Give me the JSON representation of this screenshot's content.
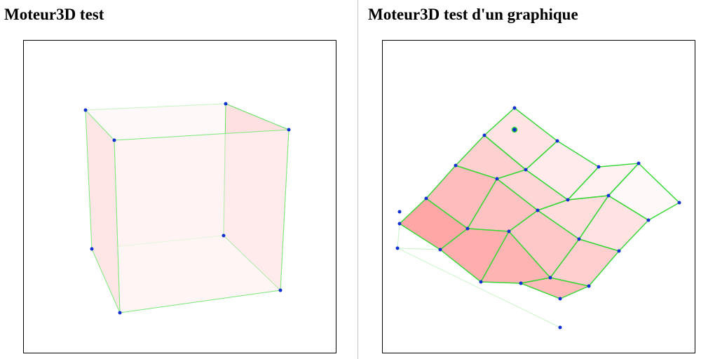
{
  "panels": [
    {
      "title": "Moteur3D test"
    },
    {
      "title": "Moteur3D test d'un graphique"
    }
  ]
}
